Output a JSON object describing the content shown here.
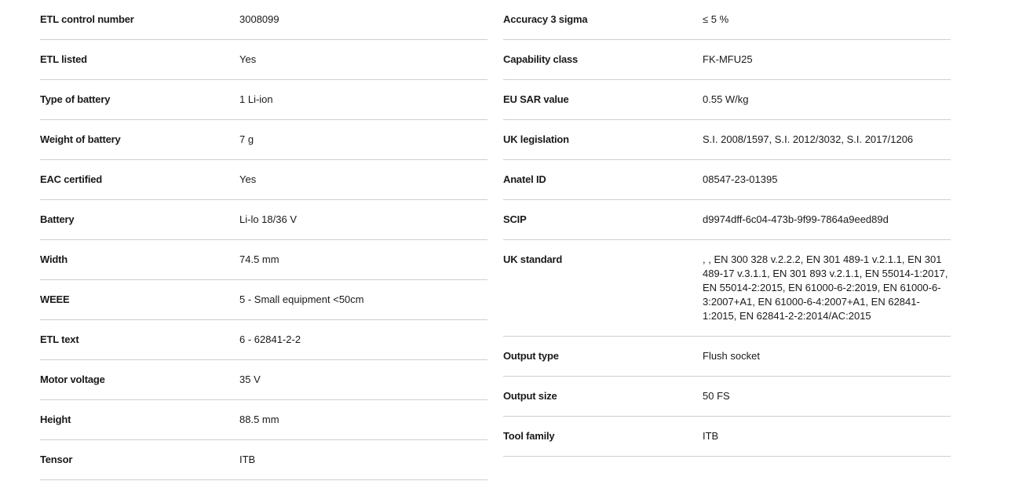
{
  "left": [
    {
      "label": "ETL control number",
      "value": "3008099"
    },
    {
      "label": "ETL listed",
      "value": "Yes"
    },
    {
      "label": "Type of battery",
      "value": "1 Li-ion"
    },
    {
      "label": "Weight of battery",
      "value": "7 g"
    },
    {
      "label": "EAC certified",
      "value": "Yes"
    },
    {
      "label": "Battery",
      "value": "Li-lo 18/36 V"
    },
    {
      "label": "Width",
      "value": "74.5 mm"
    },
    {
      "label": "WEEE",
      "value": "5 - Small equipment <50cm"
    },
    {
      "label": "ETL text",
      "value": "6 - 62841-2-2"
    },
    {
      "label": "Motor voltage",
      "value": "35 V"
    },
    {
      "label": "Height",
      "value": "88.5 mm"
    },
    {
      "label": "Tensor",
      "value": "ITB"
    }
  ],
  "right": [
    {
      "label": "Accuracy 3 sigma",
      "value": "≤ 5 %"
    },
    {
      "label": "Capability class",
      "value": "FK-MFU25"
    },
    {
      "label": "EU SAR value",
      "value": "0.55 W/kg"
    },
    {
      "label": "UK legislation",
      "value": "S.I. 2008/1597, S.I. 2012/3032, S.I. 2017/1206"
    },
    {
      "label": "Anatel ID",
      "value": "08547-23-01395"
    },
    {
      "label": "SCIP",
      "value": "d9974dff-6c04-473b-9f99-7864a9eed89d"
    },
    {
      "label": "UK standard",
      "value": ", , EN 300 328 v.2.2.2, EN 301 489-1 v.2.1.1, EN 301 489-17 v.3.1.1, EN 301 893 v.2.1.1, EN 55014-1:2017, EN 55014-2:2015, EN 61000-6-2:2019, EN 61000-6-3:2007+A1, EN 61000-6-4:2007+A1, EN 62841-1:2015, EN 62841-2-2:2014/AC:2015"
    },
    {
      "label": "Output type",
      "value": "Flush socket"
    },
    {
      "label": "Output size",
      "value": "50 FS"
    },
    {
      "label": "Tool family",
      "value": "ITB"
    }
  ]
}
